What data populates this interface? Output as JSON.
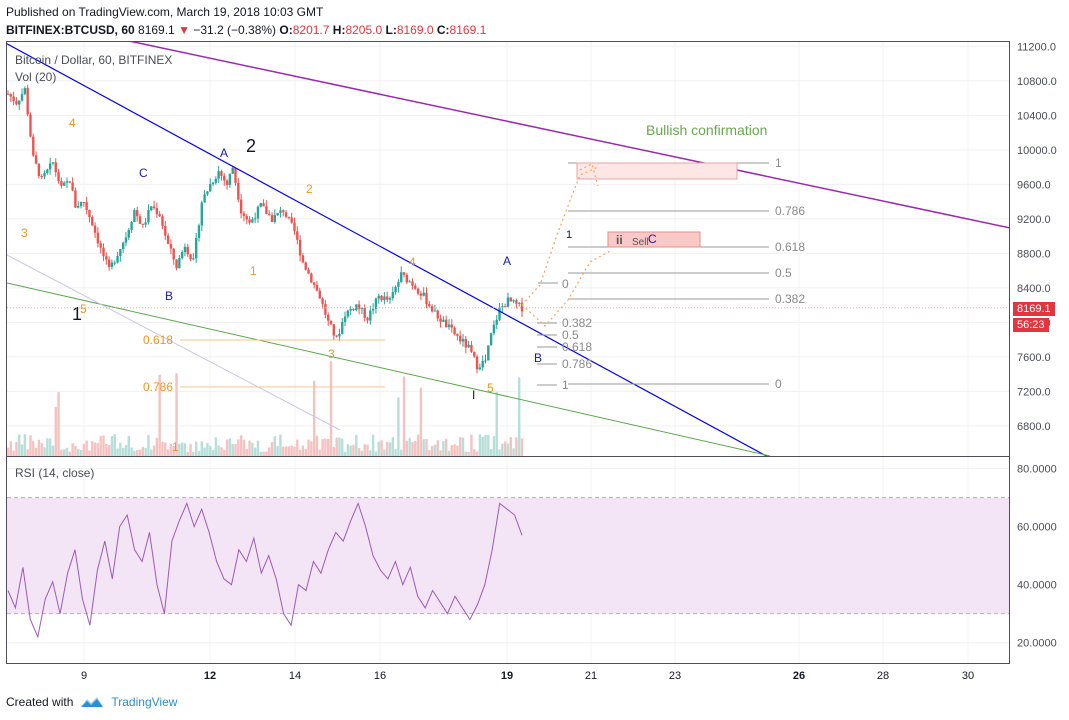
{
  "header": {
    "published": "Published on TradingView.com, March 19, 2018 10:03 GMT",
    "symbol": "BITFINEX:BTCUSD, 60",
    "last": "8169.1",
    "change_arrow": "▼",
    "change": "−31.2 (−0.38%)",
    "o_label": "O:",
    "o": "8201.7",
    "h_label": "H:",
    "h": "8205.0",
    "l_label": "L:",
    "l": "8169.0",
    "c_label": "C:",
    "c": "8169.1"
  },
  "pane_labels": {
    "main": "Bitcoin / Dollar, 60, BITFINEX",
    "vol": "Vol (20)",
    "rsi": "RSI (14, close)"
  },
  "footer": {
    "created_with": "Created with",
    "brand": "TradingView"
  },
  "colors": {
    "up": "#26a69a",
    "down": "#ef5350",
    "blue_line": "#0000ff",
    "purple_line": "#9c27b0",
    "green_line": "#5ba84b",
    "rsi": "#9c5ab8",
    "rsi_band": "#f3e5f5",
    "fib_orange": "#f7931a",
    "fib_gray": "#8a8a8a",
    "price_badge": "#e2353e"
  },
  "chart_data": [
    {
      "type": "candlestick",
      "title": "Bitcoin / Dollar, 60, BITFINEX",
      "x_ticks": [
        "9",
        "12",
        "14",
        "16",
        "19",
        "21",
        "23",
        "26",
        "28",
        "30"
      ],
      "y_ticks": [
        "11200.0",
        "10800.0",
        "10400.0",
        "10000.0",
        "9600.0",
        "9200.0",
        "8800.0",
        "8400.0",
        "8000.0",
        "7600.0",
        "7200.0",
        "6800.0"
      ],
      "ylim": [
        6450,
        11250
      ],
      "last_price": "8169.1",
      "countdown": "56:23",
      "price_path_note": "hourly candles, Mar 8 – Mar 19",
      "path_points": [
        [
          0,
          10650
        ],
        [
          3,
          10550
        ],
        [
          6,
          10700
        ],
        [
          9,
          9900
        ],
        [
          12,
          9650
        ],
        [
          16,
          9850
        ],
        [
          19,
          9550
        ],
        [
          22,
          9650
        ],
        [
          24,
          9350
        ],
        [
          27,
          9400
        ],
        [
          30,
          9150
        ],
        [
          33,
          8850
        ],
        [
          36,
          8600
        ],
        [
          39,
          8800
        ],
        [
          42,
          9000
        ],
        [
          45,
          9300
        ],
        [
          48,
          9100
        ],
        [
          51,
          9350
        ],
        [
          54,
          9250
        ],
        [
          57,
          8900
        ],
        [
          60,
          8650
        ],
        [
          63,
          8900
        ],
        [
          66,
          8700
        ],
        [
          69,
          9400
        ],
        [
          72,
          9600
        ],
        [
          75,
          9750
        ],
        [
          78,
          9600
        ],
        [
          80,
          9800
        ],
        [
          83,
          9300
        ],
        [
          86,
          9150
        ],
        [
          90,
          9350
        ],
        [
          94,
          9200
        ],
        [
          98,
          9300
        ],
        [
          102,
          9050
        ],
        [
          105,
          8700
        ],
        [
          108,
          8500
        ],
        [
          111,
          8300
        ],
        [
          114,
          8000
        ],
        [
          117,
          7800
        ],
        [
          120,
          8100
        ],
        [
          124,
          8200
        ],
        [
          128,
          8050
        ],
        [
          132,
          8300
        ],
        [
          136,
          8250
        ],
        [
          140,
          8550
        ],
        [
          144,
          8450
        ],
        [
          148,
          8300
        ],
        [
          152,
          8100
        ],
        [
          155,
          8000
        ],
        [
          158,
          7900
        ],
        [
          161,
          7800
        ],
        [
          164,
          7700
        ],
        [
          167,
          7500
        ],
        [
          170,
          7550
        ],
        [
          172,
          7850
        ],
        [
          175,
          8150
        ],
        [
          178,
          8250
        ],
        [
          181,
          8200
        ],
        [
          183,
          8169
        ]
      ],
      "lines": [
        {
          "name": "blue trendline"
        },
        {
          "name": "purple trendline"
        },
        {
          "name": "green trendline"
        }
      ],
      "fib_left": [
        {
          "level": "0.618"
        },
        {
          "level": "0.786"
        }
      ],
      "fib_right_a": [
        {
          "level": "0.382"
        },
        {
          "level": "0.5"
        },
        {
          "level": "0.618"
        },
        {
          "level": "0.786"
        },
        {
          "level": "1"
        }
      ],
      "fib_right_b": [
        {
          "level": "1"
        },
        {
          "level": "0.786"
        },
        {
          "level": "0.618"
        },
        {
          "level": "0.5"
        },
        {
          "level": "0.382"
        },
        {
          "level": "0"
        }
      ],
      "annotations": {
        "bullish": "Bullish confirmation",
        "sell": "Sell",
        "ii": "ii",
        "C_right": "C",
        "one_small": "1",
        "A_blue_right": "A",
        "B_blue_right": "B",
        "zero_small": "0",
        "i_small": "I",
        "wave_labels": [
          {
            "t": "1",
            "color": "#131722",
            "size": 18
          },
          {
            "t": "2",
            "color": "#131722",
            "size": 18
          },
          {
            "t": "A",
            "color": "#1a1ab0",
            "size": 12
          },
          {
            "t": "B",
            "color": "#1a1ab0",
            "size": 12
          },
          {
            "t": "C",
            "color": "#1a1ab0",
            "size": 12
          },
          {
            "t": "2",
            "color": "#f7931a",
            "size": 12
          },
          {
            "t": "3",
            "color": "#f7931a",
            "size": 12
          },
          {
            "t": "4",
            "color": "#f7931a",
            "size": 12
          },
          {
            "t": "5",
            "color": "#f7931a",
            "size": 12
          },
          {
            "t": "1",
            "color": "#f7931a",
            "size": 12
          },
          {
            "t": "2",
            "color": "#f7931a",
            "size": 12
          },
          {
            "t": "3",
            "color": "#f7931a",
            "size": 12
          },
          {
            "t": "4",
            "color": "#f7931a",
            "size": 12
          },
          {
            "t": "5",
            "color": "#f7931a",
            "size": 12
          },
          {
            "t": "1",
            "color": "#f7931a",
            "size": 12
          }
        ]
      }
    },
    {
      "type": "line",
      "title": "RSI (14, close)",
      "y_ticks": [
        "80.0000",
        "60.0000",
        "40.0000",
        "20.0000"
      ],
      "ylim": [
        13,
        84
      ],
      "band": [
        30,
        70
      ],
      "values": [
        38,
        32,
        46,
        28,
        22,
        35,
        41,
        30,
        44,
        52,
        35,
        26,
        45,
        55,
        42,
        60,
        64,
        52,
        48,
        58,
        40,
        30,
        55,
        62,
        68,
        60,
        66,
        58,
        48,
        42,
        40,
        52,
        48,
        56,
        44,
        50,
        42,
        30,
        26,
        40,
        38,
        48,
        44,
        52,
        58,
        55,
        62,
        68,
        60,
        50,
        45,
        42,
        48,
        40,
        46,
        36,
        32,
        38,
        34,
        30,
        36,
        32,
        28,
        33,
        40,
        52,
        68,
        66,
        64,
        57
      ]
    }
  ]
}
